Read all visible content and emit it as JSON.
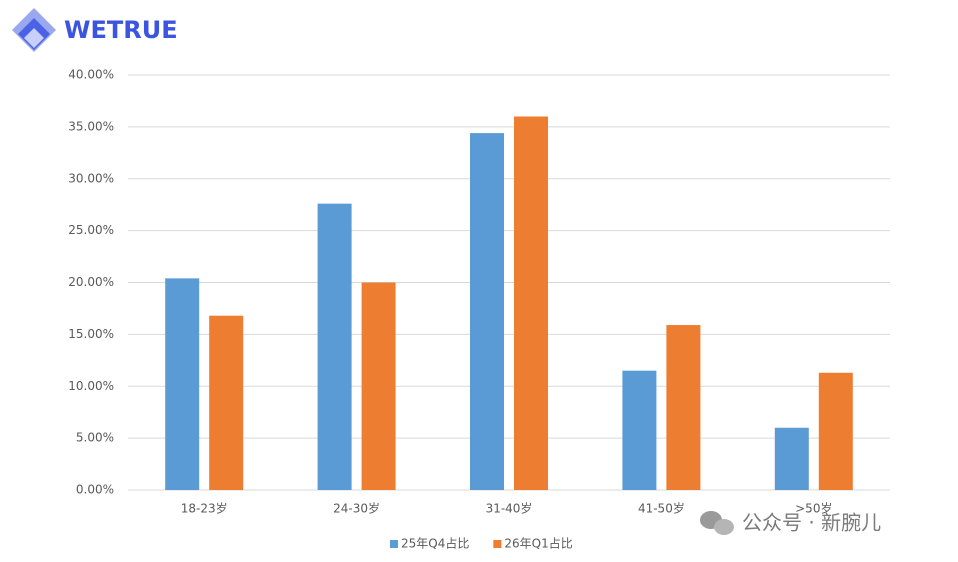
{
  "logo": "WETRUE",
  "watermark": "公众号 · 新腕儿",
  "chart_data": {
    "type": "bar",
    "categories": [
      "18-23岁",
      "24-30岁",
      "31-40岁",
      "41-50岁",
      ">50岁"
    ],
    "series": [
      {
        "name": "25年Q4占比",
        "color": "#5b9bd5",
        "values": [
          20.4,
          27.6,
          34.4,
          11.5,
          6.0
        ]
      },
      {
        "name": "26年Q1占比",
        "color": "#ed7d31",
        "values": [
          16.8,
          20.0,
          36.0,
          15.9,
          11.3
        ]
      }
    ],
    "ylim": [
      0,
      40
    ],
    "yticks": [
      {
        "value": 0,
        "label": "0.00%"
      },
      {
        "value": 5,
        "label": "5.00%"
      },
      {
        "value": 10,
        "label": "10.00%"
      },
      {
        "value": 15,
        "label": "15.00%"
      },
      {
        "value": 20,
        "label": "20.00%"
      },
      {
        "value": 25,
        "label": "25.00%"
      },
      {
        "value": 30,
        "label": "30.00%"
      },
      {
        "value": 35,
        "label": "35.00%"
      },
      {
        "value": 40,
        "label": "40.00%"
      }
    ],
    "grid": true,
    "legend": "bottom"
  }
}
